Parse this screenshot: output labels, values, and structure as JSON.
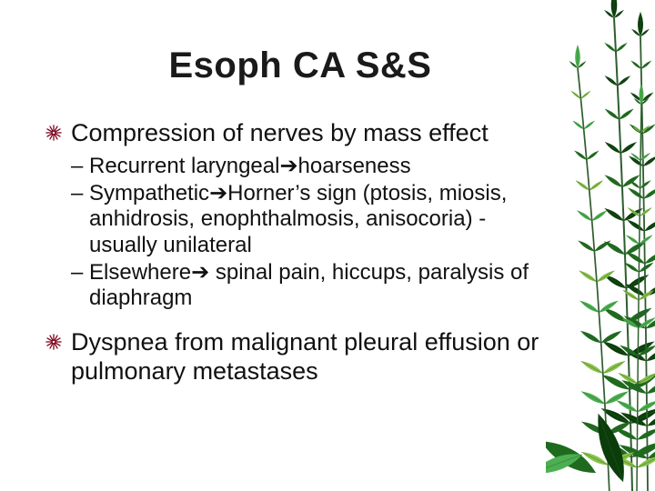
{
  "colors": {
    "background": "#ffffff",
    "title": "#1a1a1a",
    "body": "#111111",
    "bullet_lines": "#7a0019",
    "leaf_dark": "#0a3d0a",
    "leaf_mid": "#1e6b1e",
    "leaf_light": "#4caf50",
    "leaf_pale": "#8bc34a",
    "stem": "#2e5d2e"
  },
  "typography": {
    "title_fontsize": 40,
    "body_fontsize": 27,
    "sub_fontsize": 24,
    "title_family": "Arial Black",
    "body_family": "Arial"
  },
  "title": "Esoph CA S&S",
  "arrow": "➔",
  "bullets": [
    {
      "text": "Compression of nerves by mass effect",
      "sub": [
        {
          "pre": "Recurrent laryngeal",
          "post": "hoarseness"
        },
        {
          "pre": "Sympathetic",
          "post": "Horner’s sign (ptosis, miosis, anhidrosis, enophthalmosis, anisocoria) - usually unilateral"
        },
        {
          "pre": "Elsewhere",
          "post": " spinal pain, hiccups, paralysis of diaphragm"
        }
      ]
    },
    {
      "text": "Dyspnea from malignant pleural effusion or pulmonary metastases",
      "sub": []
    }
  ]
}
